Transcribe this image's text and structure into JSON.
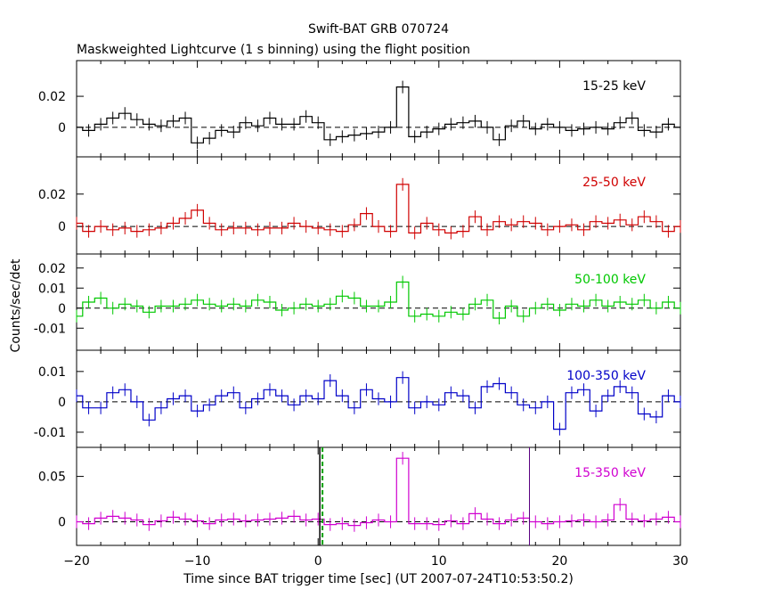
{
  "title": "Swift-BAT GRB 070724",
  "subtitle": "Maskweighted Lightcurve (1 s binning) using the flight position",
  "xlabel": "Time since BAT trigger time [sec] (UT 2007-07-24T10:53:50.2)",
  "ylabel": "Counts/sec/det",
  "colors": {
    "axis": "#000000",
    "band1": "#000000",
    "band2": "#d00000",
    "band3": "#00c800",
    "band4": "#0000c8",
    "band5": "#d000d0",
    "marker_dashed": "#00a000"
  },
  "chart_data": [
    {
      "type": "line",
      "band": "15-25 keV",
      "color": "#000000",
      "xlim": [
        -20,
        30
      ],
      "ylim": [
        -0.019,
        0.043
      ],
      "x_ticks": [],
      "y_ticks": [
        0,
        0.02
      ],
      "y_tick_labels": [
        "0",
        "0.02"
      ],
      "series": [
        {
          "name": "15-25 keV",
          "x_start": -20,
          "bin": 1,
          "values": [
            0.0,
            -0.002,
            0.002,
            0.006,
            0.009,
            0.005,
            0.002,
            0.001,
            0.004,
            0.006,
            -0.01,
            -0.007,
            -0.002,
            -0.003,
            0.003,
            0.001,
            0.006,
            0.002,
            0.002,
            0.007,
            0.003,
            -0.008,
            -0.006,
            -0.005,
            -0.004,
            -0.003,
            0.0,
            0.026,
            -0.006,
            -0.003,
            -0.001,
            0.002,
            0.003,
            0.004,
            0.0,
            -0.008,
            0.001,
            0.004,
            -0.001,
            0.002,
            0.0,
            -0.002,
            -0.001,
            0.0,
            -0.001,
            0.003,
            0.006,
            -0.002,
            -0.003,
            0.002,
            0.0
          ]
        }
      ]
    },
    {
      "type": "line",
      "band": "25-50 keV",
      "color": "#d00000",
      "xlim": [
        -20,
        30
      ],
      "ylim": [
        -0.017,
        0.043
      ],
      "x_ticks": [],
      "y_ticks": [
        0,
        0.02
      ],
      "y_tick_labels": [
        "0",
        "0.02"
      ],
      "series": [
        {
          "name": "25-50 keV",
          "x_start": -20,
          "bin": 1,
          "values": [
            0.002,
            -0.003,
            0.0,
            -0.002,
            -0.001,
            -0.003,
            -0.002,
            -0.001,
            0.002,
            0.005,
            0.01,
            0.002,
            -0.002,
            -0.001,
            -0.001,
            -0.002,
            -0.001,
            -0.001,
            0.002,
            0.0,
            -0.001,
            -0.002,
            -0.003,
            0.001,
            0.008,
            0.0,
            -0.003,
            0.026,
            -0.004,
            0.002,
            -0.002,
            -0.004,
            -0.003,
            0.006,
            -0.002,
            0.003,
            0.001,
            0.003,
            0.002,
            -0.002,
            0.0,
            0.001,
            -0.002,
            0.003,
            0.002,
            0.004,
            0.001,
            0.006,
            0.003,
            -0.003,
            0.0
          ]
        }
      ]
    },
    {
      "type": "line",
      "band": "50-100 keV",
      "color": "#00c800",
      "xlim": [
        -20,
        30
      ],
      "ylim": [
        -0.021,
        0.027
      ],
      "x_ticks": [],
      "y_ticks": [
        -0.01,
        0,
        0.01,
        0.02
      ],
      "y_tick_labels": [
        "-0.01",
        "0",
        "0.01",
        "0.02"
      ],
      "series": [
        {
          "name": "50-100 keV",
          "x_start": -20,
          "bin": 1,
          "values": [
            -0.004,
            0.003,
            0.005,
            0.0,
            0.002,
            0.001,
            -0.002,
            0.001,
            0.001,
            0.002,
            0.004,
            0.002,
            0.001,
            0.002,
            0.001,
            0.004,
            0.003,
            -0.001,
            0.0,
            0.002,
            0.001,
            0.002,
            0.006,
            0.005,
            0.001,
            0.001,
            0.003,
            0.013,
            -0.004,
            -0.003,
            -0.004,
            -0.002,
            -0.003,
            0.002,
            0.004,
            -0.005,
            0.001,
            -0.004,
            0.0,
            0.002,
            -0.001,
            0.002,
            0.001,
            0.004,
            0.001,
            0.003,
            0.002,
            0.004,
            0.0,
            0.003,
            0.0
          ]
        }
      ]
    },
    {
      "type": "line",
      "band": "100-350 keV",
      "color": "#0000c8",
      "xlim": [
        -20,
        30
      ],
      "ylim": [
        -0.015,
        0.017
      ],
      "x_ticks": [],
      "y_ticks": [
        -0.01,
        0,
        0.01
      ],
      "y_tick_labels": [
        "-0.01",
        "0",
        "0.01"
      ],
      "series": [
        {
          "name": "100-350 keV",
          "x_start": -20,
          "bin": 1,
          "values": [
            0.002,
            -0.002,
            -0.002,
            0.003,
            0.004,
            0.0,
            -0.006,
            -0.002,
            0.001,
            0.002,
            -0.003,
            -0.001,
            0.002,
            0.003,
            -0.002,
            0.001,
            0.004,
            0.002,
            -0.001,
            0.002,
            0.001,
            0.007,
            0.002,
            -0.002,
            0.004,
            0.001,
            0.0,
            0.008,
            -0.002,
            0.0,
            -0.001,
            0.003,
            0.002,
            -0.002,
            0.005,
            0.006,
            0.003,
            -0.001,
            -0.002,
            0.0,
            -0.009,
            0.003,
            0.004,
            -0.003,
            0.002,
            0.005,
            0.003,
            -0.004,
            -0.005,
            0.002,
            0.0
          ]
        }
      ]
    },
    {
      "type": "line",
      "band": "15-350 keV",
      "color": "#d000d0",
      "xlim": [
        -20,
        30
      ],
      "ylim": [
        -0.026,
        0.082
      ],
      "x_ticks": [
        -20,
        -10,
        0,
        10,
        20,
        30
      ],
      "x_tick_labels": [
        "−20",
        "−10",
        "0",
        "10",
        "20",
        "30"
      ],
      "y_ticks": [
        0,
        0.05
      ],
      "y_tick_labels": [
        "0",
        "0.05"
      ],
      "markers_dashed": [
        0.25
      ],
      "markers_solid": [
        17.5
      ],
      "series": [
        {
          "name": "15-350 keV",
          "x_start": -20,
          "bin": 1,
          "values": [
            0.0,
            -0.002,
            0.004,
            0.006,
            0.004,
            0.002,
            -0.003,
            0.001,
            0.005,
            0.003,
            0.001,
            -0.002,
            0.002,
            0.003,
            0.001,
            0.002,
            0.003,
            0.004,
            0.006,
            0.002,
            0.003,
            -0.003,
            -0.002,
            -0.004,
            -0.001,
            0.002,
            0.0,
            0.07,
            -0.002,
            -0.002,
            -0.003,
            0.001,
            -0.002,
            0.009,
            0.003,
            -0.002,
            0.002,
            0.004,
            0.0,
            -0.002,
            0.0,
            0.001,
            0.002,
            0.0,
            0.002,
            0.019,
            0.003,
            0.001,
            0.003,
            0.005,
            0.0
          ]
        }
      ]
    }
  ]
}
